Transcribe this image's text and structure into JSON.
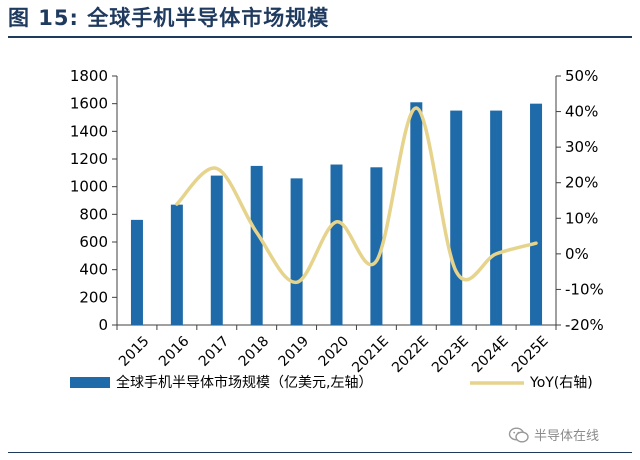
{
  "figure": {
    "title": "图 15:  全球手机半导体市场规模"
  },
  "watermark": {
    "text": "半导体在线",
    "icon": "wechat-icon"
  },
  "chart_data": {
    "type": "bar",
    "title": "",
    "categories": [
      "2015",
      "2016",
      "2017",
      "2018",
      "2019",
      "2020",
      "2021E",
      "2022E",
      "2023E",
      "2024E",
      "2025E"
    ],
    "series": [
      {
        "name": "全球手机半导体市场规模（亿美元,左轴）",
        "type": "bar",
        "axis": "left",
        "color": "#1f6aa8",
        "values": [
          760,
          870,
          1080,
          1150,
          1060,
          1160,
          1140,
          1610,
          1550,
          1550,
          1600
        ]
      },
      {
        "name": "YoY(右轴)",
        "type": "line",
        "axis": "right",
        "smooth": true,
        "color": "#e6d38c",
        "values": [
          null,
          14,
          24,
          6,
          -8,
          9,
          -2,
          41,
          -5,
          0,
          3
        ]
      }
    ],
    "y_left": {
      "min": 0,
      "max": 1800,
      "ticks": [
        0,
        200,
        400,
        600,
        800,
        1000,
        1200,
        1400,
        1600,
        1800
      ]
    },
    "y_right": {
      "min": -20,
      "max": 50,
      "ticks": [
        -20,
        -10,
        0,
        10,
        20,
        30,
        40,
        50
      ],
      "unit": "%"
    },
    "grid": false,
    "legend_position": "bottom"
  }
}
